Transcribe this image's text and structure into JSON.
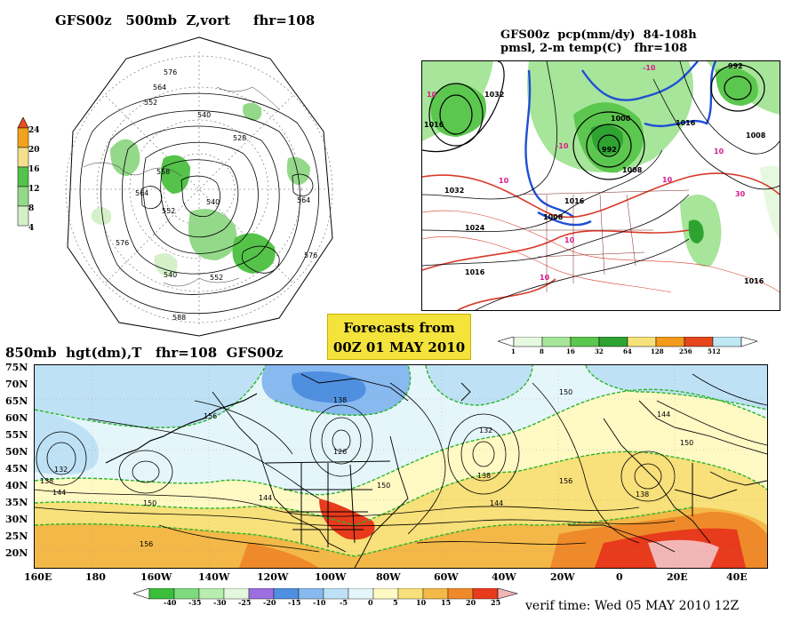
{
  "titles": {
    "polar": "GFS00z   500mb  Z,vort     fhr=108",
    "precip_line1": "GFS00z  pcp(mm/dy)  84-108h",
    "precip_line2": "pmsl, 2-m temp(C)   fhr=108",
    "hgt850": "850mb  hgt(dm),T   fhr=108  GFS00z"
  },
  "forecast_box": {
    "line1": "Forecasts from",
    "line2": "00Z  01  MAY  2010"
  },
  "verif_time": "verif time: Wed 05 MAY 2010 12Z",
  "vort_scale": {
    "labels": [
      "24",
      "20",
      "16",
      "12",
      "8",
      "4"
    ],
    "colors": [
      "#e8501e",
      "#f2a21c",
      "#f4e08c",
      "#55c24a",
      "#94d98a",
      "#d5f0c9"
    ]
  },
  "precip_scale": {
    "labels": [
      "1",
      "8",
      "16",
      "32",
      "64",
      "128",
      "256",
      "512"
    ],
    "colors": [
      "#e6f8e0",
      "#a6e59a",
      "#5cc74e",
      "#2ea332",
      "#f5e27a",
      "#f29b1c",
      "#e5461c",
      "#bfe8f5"
    ]
  },
  "temp_scale": {
    "labels": [
      "-40",
      "-35",
      "-30",
      "-25",
      "-20",
      "-15",
      "-10",
      "-5",
      "0",
      "5",
      "10",
      "15",
      "20",
      "25"
    ],
    "colors": [
      "#3bbf3b",
      "#7fd97f",
      "#b8ecb0",
      "#e3f7de",
      "#9b6fe0",
      "#4f8fe0",
      "#88b9ef",
      "#bfe1f5",
      "#e5f6fb",
      "#fff9c4",
      "#f8e07a",
      "#f3b847",
      "#ee8a2a",
      "#e83a1c",
      "#f3b6b6"
    ]
  },
  "hgt850_map": {
    "lat_labels": [
      "75N",
      "70N",
      "65N",
      "60N",
      "55N",
      "50N",
      "45N",
      "40N",
      "35N",
      "30N",
      "25N",
      "20N"
    ],
    "lon_labels": [
      "160E",
      "180",
      "160W",
      "140W",
      "120W",
      "100W",
      "80W",
      "60W",
      "40W",
      "20W",
      "0",
      "20E",
      "40E"
    ],
    "contour_labels": [
      "132",
      "138",
      "144",
      "150",
      "156",
      "126",
      "138",
      "144",
      "150",
      "156",
      "132",
      "138",
      "144",
      "150",
      "156",
      "138",
      "144",
      "150"
    ]
  },
  "polar_map": {
    "contour_labels": [
      "576",
      "564",
      "552",
      "540",
      "528",
      "558",
      "552",
      "540",
      "564",
      "576",
      "588",
      "576",
      "564",
      "552",
      "540"
    ]
  },
  "precip_map": {
    "contour_labels": [
      "1032",
      "1024",
      "1016",
      "1008",
      "1000",
      "992",
      "1032",
      "1016",
      "1008",
      "1016",
      "992",
      "1008",
      "1016",
      "1016"
    ],
    "temp_labels": [
      "10",
      "10",
      "10",
      "-10",
      "10",
      "-10",
      "10",
      "10",
      "30"
    ]
  }
}
